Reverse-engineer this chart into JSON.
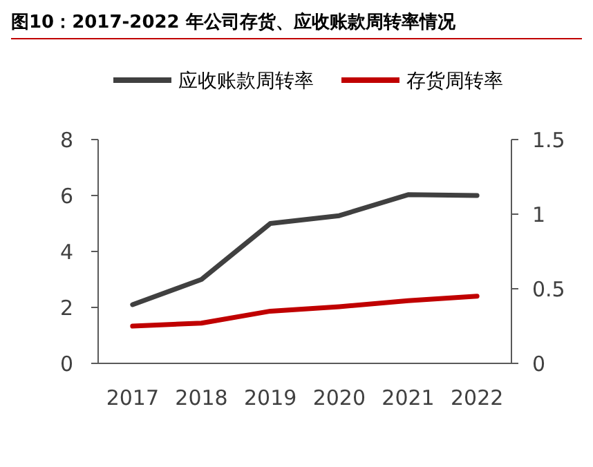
{
  "chart_data": {
    "type": "line",
    "title": "图10：2017-2022 年公司存货、应收账款周转率情况",
    "categories": [
      "2017",
      "2018",
      "2019",
      "2020",
      "2021",
      "2022"
    ],
    "series": [
      {
        "name": "应收账款周转率",
        "color": "#404040",
        "values": [
          2.1,
          3.0,
          5.0,
          5.28,
          6.03,
          6.0
        ]
      },
      {
        "name": "存货周转率",
        "color": "#c00000",
        "axis": "y2",
        "values": [
          0.25,
          0.27,
          0.35,
          0.38,
          0.42,
          0.45
        ]
      }
    ],
    "ylim": [
      0,
      8
    ],
    "yticks": [
      0,
      2,
      4,
      6,
      8
    ],
    "y2lim": [
      0,
      1.5
    ],
    "y2ticks": [
      0,
      0.5,
      1,
      1.5
    ],
    "legend": "top",
    "grid": false,
    "line_style": "solid",
    "marker": "none"
  }
}
